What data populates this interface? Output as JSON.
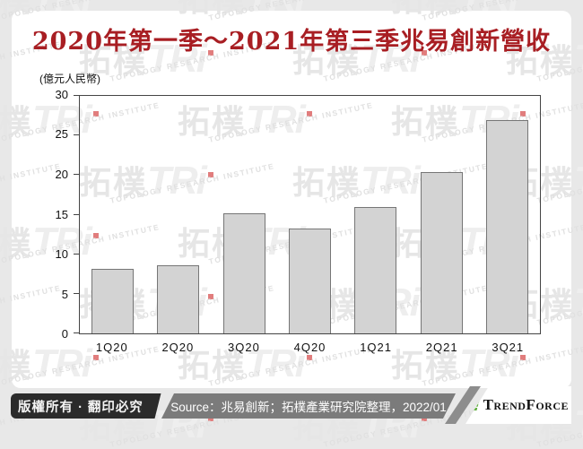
{
  "chart_data": {
    "type": "bar",
    "title": "2020年第一季～2021年第三季兆易創新營收",
    "unit_label": "(億元人民幣)",
    "categories": [
      "1Q20",
      "2Q20",
      "3Q20",
      "4Q20",
      "1Q21",
      "2Q21",
      "3Q21"
    ],
    "values": [
      8.1,
      8.6,
      15.2,
      13.3,
      16.0,
      20.4,
      26.9
    ],
    "xlabel": "",
    "ylabel": "",
    "ylim": [
      0,
      30
    ],
    "yticks": [
      0,
      5,
      10,
      15,
      20,
      25,
      30
    ],
    "grid": false,
    "legend": false,
    "bar_fill": "#D3D3D3",
    "bar_border": "#767676"
  },
  "watermark": {
    "cjk": "拓樸",
    "latin": "TRi",
    "subtext": "TOPOLOGY RESEARCH INSTITUTE",
    "dot_color": "#E17D7D"
  },
  "footer": {
    "copyright": "版權所有 · 翻印必究",
    "source": "Source：兆易創新；拓樸產業研究院整理，2022/01",
    "brand": "TrendForce"
  },
  "colors": {
    "title_red": "#A81E23",
    "footer_dark": "#2B2B2B",
    "footer_gray": "#7B7B7B",
    "brand_green": "#5FAF3C",
    "card_bg": "#FFFFFF",
    "page_bg": "#E8E8E8"
  }
}
